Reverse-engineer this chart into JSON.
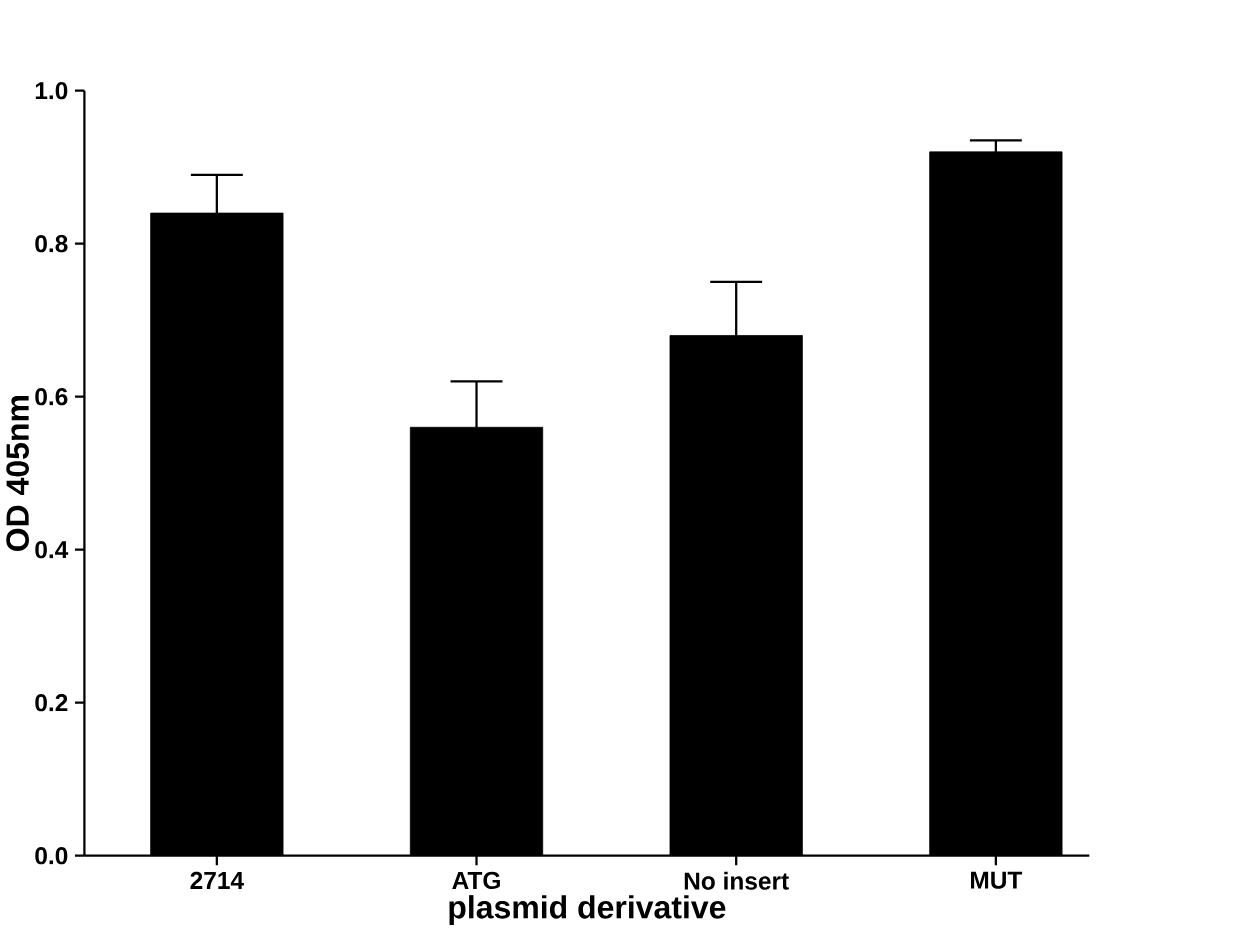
{
  "chart_data": {
    "type": "bar",
    "xlabel": "plasmid derivative",
    "ylabel": "OD 405nm",
    "categories": [
      "2714",
      "ATG",
      "No insert",
      "MUT"
    ],
    "values": [
      0.84,
      0.56,
      0.68,
      0.92
    ],
    "errors": [
      [
        0.84,
        0.89
      ],
      [
        0.56,
        0.62
      ],
      [
        0.68,
        0.75
      ],
      [
        0.92,
        0.935
      ]
    ],
    "color": "#000000",
    "ylim": [
      0,
      1.0
    ],
    "yticks": [
      {
        "value": 0,
        "label": "0.0"
      },
      {
        "value": 0.2,
        "label": "0.2"
      },
      {
        "value": 0.4,
        "label": "0.4"
      },
      {
        "value": 0.6,
        "label": "0.6"
      },
      {
        "value": 0.8,
        "label": "0.8"
      },
      {
        "value": 1.0,
        "label": "1.0"
      }
    ],
    "grid": false
  }
}
